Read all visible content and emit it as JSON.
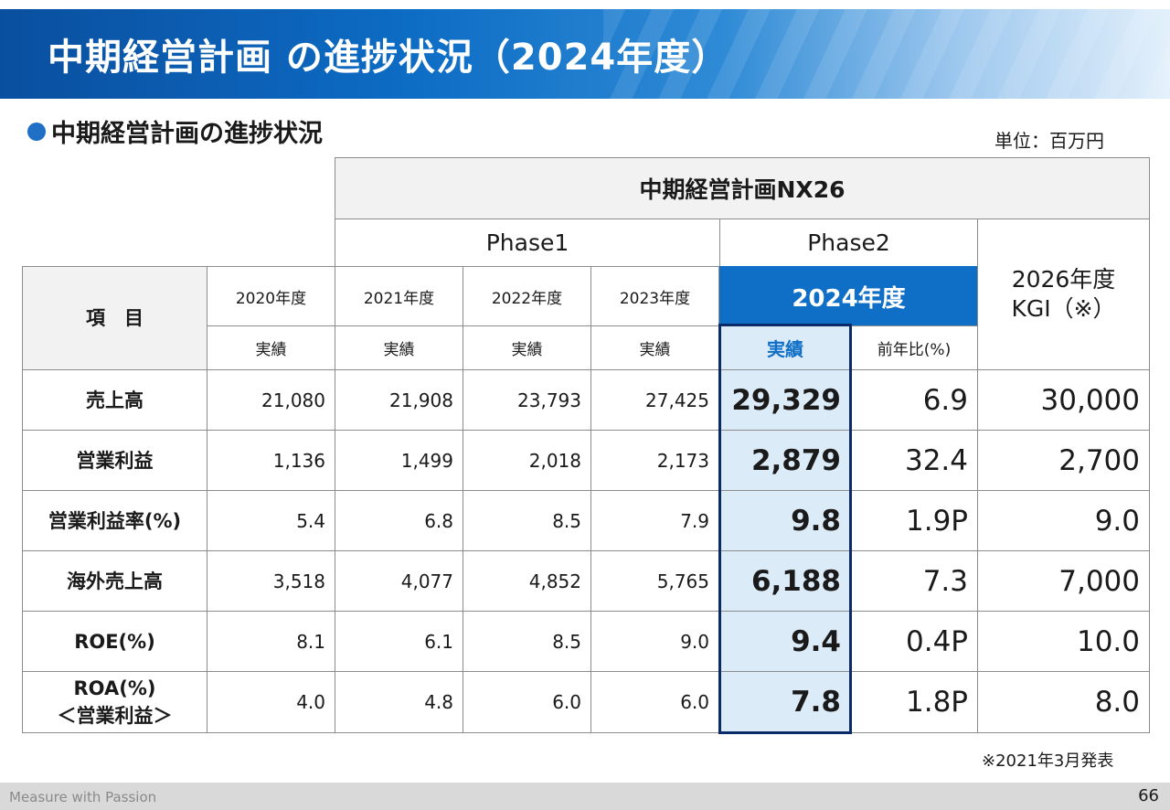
{
  "title": "中期経営計画 の進捗状況（2024年度）",
  "subtitle": "中期経営計画の進捗状況",
  "unit": "単位：百万円",
  "plan_name": "中期経営計画NX26",
  "phase1": "Phase1",
  "phase2": "Phase2",
  "item_header": "項　目",
  "years": [
    "2020年度",
    "2021年度",
    "2022年度",
    "2023年度"
  ],
  "current_year": "2024年度",
  "kgi_year": "2026年度",
  "kgi_label": "KGI（※）",
  "actual_label": "実績",
  "yoy_label": "前年比(%)",
  "rows": [
    {
      "label": "売上高",
      "values": [
        "21,080",
        "21,908",
        "23,793",
        "27,425"
      ],
      "current": "29,329",
      "yoy": "6.9",
      "kgi": "30,000"
    },
    {
      "label": "営業利益",
      "values": [
        "1,136",
        "1,499",
        "2,018",
        "2,173"
      ],
      "current": "2,879",
      "yoy": "32.4",
      "kgi": "2,700"
    },
    {
      "label": "営業利益率(%)",
      "values": [
        "5.4",
        "6.8",
        "8.5",
        "7.9"
      ],
      "current": "9.8",
      "yoy": "1.9P",
      "kgi": "9.0"
    },
    {
      "label": "海外売上高",
      "values": [
        "3,518",
        "4,077",
        "4,852",
        "5,765"
      ],
      "current": "6,188",
      "yoy": "7.3",
      "kgi": "7,000"
    },
    {
      "label": "ROE(%)",
      "values": [
        "8.1",
        "6.1",
        "8.5",
        "9.0"
      ],
      "current": "9.4",
      "yoy": "0.4P",
      "kgi": "10.0"
    },
    {
      "label": "ROA(%)",
      "label2": "＜営業利益＞",
      "values": [
        "4.0",
        "4.8",
        "6.0",
        "6.0"
      ],
      "current": "7.8",
      "yoy": "1.8P",
      "kgi": "8.0"
    }
  ],
  "note": "※2021年3月発表",
  "footer_slogan": "Measure with Passion",
  "page_number": "66",
  "colors": {
    "header_blue": "#0f6fc6",
    "highlight": "#dcebf8",
    "frame": "#0b2a68"
  }
}
